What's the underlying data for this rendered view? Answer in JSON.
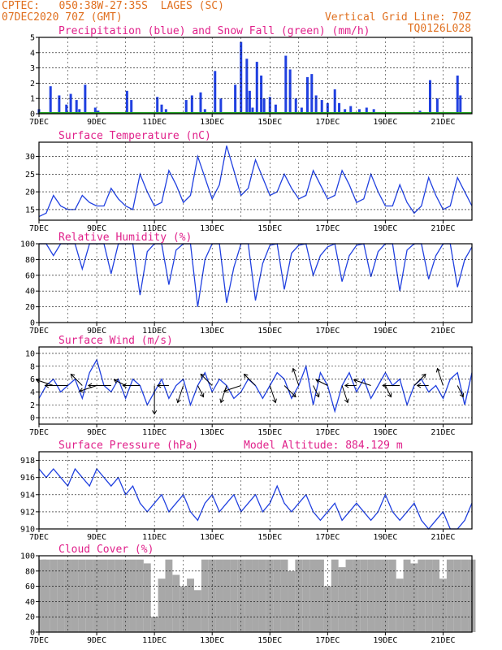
{
  "header": {
    "line1_left": "CPTEC:   050:38W-27:35S  LAGES (SC)",
    "line2_left": "07DEC2020 70Z (GMT)",
    "line1_right": "Vertical Grid Line: 70Z",
    "line2_right": "TQ0126L028"
  },
  "colors": {
    "title": "#e0208a",
    "header": "#e07020",
    "line": "#2040e0",
    "snow": "#20a020",
    "cloud": "#a8a8a8",
    "grid": "#000000"
  },
  "x_ticks": [
    "7DEC",
    "9DEC",
    "11DEC",
    "13DEC",
    "15DEC",
    "17DEC",
    "19DEC",
    "21DEC"
  ],
  "chart_data": [
    {
      "type": "bar",
      "title": "Precipitation (blue) and Snow Fall (green) (mm/h)",
      "ylim": [
        0,
        5
      ],
      "yticks": [
        "0",
        "1",
        "2",
        "3",
        "4",
        "5"
      ],
      "x_days": [
        0.0,
        0.4,
        0.7,
        0.95,
        1.1,
        1.3,
        1.4,
        1.6,
        1.95,
        2.05,
        3.05,
        3.2,
        4.1,
        4.25,
        4.4,
        5.1,
        5.3,
        5.6,
        5.75,
        6.1,
        6.3,
        6.8,
        7.0,
        7.2,
        7.3,
        7.4,
        7.55,
        7.7,
        7.8,
        8.0,
        8.2,
        8.55,
        8.7,
        8.9,
        9.1,
        9.3,
        9.45,
        9.6,
        9.8,
        10.0,
        10.25,
        10.4,
        10.6,
        10.8,
        11.1,
        11.35,
        11.6,
        13.2,
        13.55,
        13.8,
        14.5,
        14.6
      ],
      "precip": [
        0.3,
        1.8,
        1.2,
        0.6,
        1.3,
        0.9,
        0.3,
        1.9,
        0.4,
        0.2,
        1.5,
        0.9,
        1.1,
        0.6,
        0.3,
        0.9,
        1.2,
        1.4,
        0.3,
        2.8,
        1.0,
        1.9,
        4.7,
        3.6,
        1.5,
        0.4,
        3.4,
        2.5,
        1.0,
        1.1,
        0.6,
        3.8,
        2.9,
        1.0,
        0.4,
        2.4,
        2.6,
        1.2,
        0.9,
        0.7,
        1.6,
        0.7,
        0.3,
        0.5,
        0.3,
        0.4,
        0.3,
        0.2,
        2.2,
        1.0,
        2.5,
        1.2
      ],
      "snow": [
        0,
        0,
        0,
        0,
        0,
        0,
        0,
        0,
        0,
        0,
        0,
        0,
        0,
        0,
        0,
        0,
        0,
        0,
        0,
        0,
        0,
        0,
        0,
        0,
        0,
        0,
        0,
        0,
        0,
        0,
        0,
        0,
        0,
        0,
        0,
        0,
        0,
        0,
        0,
        0,
        0,
        0,
        0,
        0,
        0,
        0,
        0,
        0,
        0,
        0,
        0,
        0
      ]
    },
    {
      "type": "line",
      "title": "Surface Temperature (nC)",
      "ylim": [
        12,
        34
      ],
      "yticks": [
        "15",
        "20",
        "25",
        "30"
      ],
      "x_days": [
        0.0,
        0.25,
        0.5,
        0.75,
        1.0,
        1.25,
        1.5,
        1.75,
        2.0,
        2.25,
        2.5,
        2.75,
        3.0,
        3.25,
        3.5,
        3.75,
        4.0,
        4.25,
        4.5,
        4.75,
        5.0,
        5.25,
        5.5,
        5.75,
        6.0,
        6.25,
        6.5,
        6.75,
        7.0,
        7.25,
        7.5,
        7.75,
        8.0,
        8.25,
        8.5,
        8.75,
        9.0,
        9.25,
        9.5,
        9.75,
        10.0,
        10.25,
        10.5,
        10.75,
        11.0,
        11.25,
        11.5,
        11.75,
        12.0,
        12.25,
        12.5,
        12.75,
        13.0,
        13.25,
        13.5,
        13.75,
        14.0,
        14.25,
        14.5,
        14.75,
        15.0
      ],
      "y": [
        13,
        14,
        19,
        16,
        15,
        15,
        19,
        17,
        16,
        16,
        21,
        18,
        16,
        15,
        25,
        20,
        16,
        17,
        26,
        22,
        17,
        19,
        30,
        24,
        18,
        22,
        33,
        26,
        19,
        21,
        29,
        24,
        19,
        20,
        25,
        21,
        18,
        19,
        26,
        22,
        18,
        19,
        26,
        22,
        17,
        18,
        25,
        20,
        16,
        16,
        22,
        17,
        14,
        16,
        24,
        19,
        15,
        16,
        24,
        20,
        16
      ]
    },
    {
      "type": "line",
      "title": "Relative Humidity (%)",
      "ylim": [
        0,
        100
      ],
      "yticks": [
        "0",
        "20",
        "40",
        "60",
        "80",
        "100"
      ],
      "x_days": [
        0.0,
        0.25,
        0.5,
        0.75,
        1.0,
        1.25,
        1.5,
        1.75,
        2.0,
        2.25,
        2.5,
        2.75,
        3.0,
        3.25,
        3.5,
        3.75,
        4.0,
        4.25,
        4.5,
        4.75,
        5.0,
        5.25,
        5.5,
        5.75,
        6.0,
        6.25,
        6.5,
        6.75,
        7.0,
        7.25,
        7.5,
        7.75,
        8.0,
        8.25,
        8.5,
        8.75,
        9.0,
        9.25,
        9.5,
        9.75,
        10.0,
        10.25,
        10.5,
        10.75,
        11.0,
        11.25,
        11.5,
        11.75,
        12.0,
        12.25,
        12.5,
        12.75,
        13.0,
        13.25,
        13.5,
        13.75,
        14.0,
        14.25,
        14.5,
        14.75,
        15.0
      ],
      "y": [
        100,
        100,
        85,
        100,
        100,
        100,
        68,
        100,
        100,
        100,
        62,
        100,
        100,
        100,
        35,
        90,
        100,
        100,
        48,
        92,
        100,
        100,
        20,
        80,
        100,
        100,
        25,
        70,
        100,
        100,
        28,
        75,
        98,
        100,
        42,
        88,
        98,
        100,
        60,
        85,
        96,
        100,
        52,
        85,
        98,
        100,
        58,
        90,
        100,
        100,
        40,
        92,
        100,
        100,
        55,
        85,
        100,
        100,
        45,
        80,
        96
      ]
    },
    {
      "type": "line",
      "title": "Surface Wind (m/s)",
      "ylim": [
        -1,
        11
      ],
      "yticks": [
        "0",
        "2",
        "4",
        "6",
        "8",
        "10"
      ],
      "x_days": [
        0.0,
        0.25,
        0.5,
        0.75,
        1.0,
        1.25,
        1.5,
        1.75,
        2.0,
        2.25,
        2.5,
        2.75,
        3.0,
        3.25,
        3.5,
        3.75,
        4.0,
        4.25,
        4.5,
        4.75,
        5.0,
        5.25,
        5.5,
        5.75,
        6.0,
        6.25,
        6.5,
        6.75,
        7.0,
        7.25,
        7.5,
        7.75,
        8.0,
        8.25,
        8.5,
        8.75,
        9.0,
        9.25,
        9.5,
        9.75,
        10.0,
        10.25,
        10.5,
        10.75,
        11.0,
        11.25,
        11.5,
        11.75,
        12.0,
        12.25,
        12.5,
        12.75,
        13.0,
        13.25,
        13.5,
        13.75,
        14.0,
        14.25,
        14.5,
        14.75,
        15.0
      ],
      "y": [
        3,
        5,
        6,
        4,
        5,
        6,
        3,
        7,
        9,
        5,
        4,
        6,
        3,
        6,
        5,
        2,
        4,
        6,
        3,
        5,
        6,
        2,
        5,
        7,
        4,
        6,
        5,
        3,
        4,
        6,
        5,
        3,
        5,
        7,
        6,
        3,
        5,
        8,
        2,
        7,
        5,
        1,
        5,
        7,
        4,
        6,
        3,
        5,
        7,
        5,
        6,
        2,
        5,
        6,
        4,
        5,
        3,
        6,
        7,
        2,
        7
      ],
      "arrow_x_days": [
        0.5,
        1.0,
        1.5,
        2.0,
        2.5,
        3.0,
        3.5,
        4.0,
        4.5,
        5.0,
        5.5,
        6.0,
        6.5,
        7.0,
        7.5,
        8.0,
        8.5,
        9.0,
        9.5,
        10.0,
        10.5,
        11.0,
        11.5,
        12.0,
        12.5,
        13.0,
        13.5,
        14.0,
        14.5
      ],
      "arrow_u": [
        -3,
        -4,
        -2,
        -3,
        -4,
        -2,
        -3,
        0,
        -2,
        -1,
        1,
        -2,
        -1,
        -3,
        -2,
        1,
        2,
        -1,
        1,
        -2,
        1,
        -2,
        -3,
        1,
        -3,
        2,
        -2,
        -1,
        1
      ],
      "arrow_v": [
        1,
        0,
        2,
        -1,
        0,
        1,
        0,
        -5,
        0,
        -3,
        -2,
        2,
        -3,
        -1,
        2,
        -3,
        -2,
        3,
        -2,
        1,
        -3,
        0,
        1,
        -2,
        0,
        2,
        0,
        3,
        -2
      ]
    },
    {
      "type": "line",
      "title": "Surface Pressure (hPa)",
      "annotation": "Model Altitude: 884.129 m",
      "ylim": [
        910,
        919
      ],
      "yticks": [
        "910",
        "912",
        "914",
        "916",
        "918"
      ],
      "x_days": [
        0.0,
        0.25,
        0.5,
        0.75,
        1.0,
        1.25,
        1.5,
        1.75,
        2.0,
        2.25,
        2.5,
        2.75,
        3.0,
        3.25,
        3.5,
        3.75,
        4.0,
        4.25,
        4.5,
        4.75,
        5.0,
        5.25,
        5.5,
        5.75,
        6.0,
        6.25,
        6.5,
        6.75,
        7.0,
        7.25,
        7.5,
        7.75,
        8.0,
        8.25,
        8.5,
        8.75,
        9.0,
        9.25,
        9.5,
        9.75,
        10.0,
        10.25,
        10.5,
        10.75,
        11.0,
        11.25,
        11.5,
        11.75,
        12.0,
        12.25,
        12.5,
        12.75,
        13.0,
        13.25,
        13.5,
        13.75,
        14.0,
        14.25,
        14.5,
        14.75,
        15.0
      ],
      "y": [
        917,
        916,
        917,
        916,
        915,
        917,
        916,
        915,
        917,
        916,
        915,
        916,
        914,
        915,
        913,
        912,
        913,
        914,
        912,
        913,
        914,
        912,
        911,
        913,
        914,
        912,
        913,
        914,
        912,
        913,
        914,
        912,
        913,
        915,
        913,
        912,
        913,
        914,
        912,
        911,
        912,
        913,
        911,
        912,
        913,
        912,
        911,
        912,
        914,
        912,
        911,
        912,
        913,
        911,
        910,
        911,
        912,
        910,
        910,
        911,
        913
      ]
    },
    {
      "type": "bar",
      "title": "Cloud Cover (%)",
      "ylim": [
        0,
        100
      ],
      "yticks": [
        "0",
        "20",
        "40",
        "60",
        "80",
        "100"
      ],
      "x_days": [
        0.0,
        0.25,
        0.5,
        0.75,
        1.0,
        1.25,
        1.5,
        1.75,
        2.0,
        2.25,
        2.5,
        2.75,
        3.0,
        3.25,
        3.5,
        3.75,
        4.0,
        4.25,
        4.5,
        4.75,
        5.0,
        5.25,
        5.5,
        5.75,
        6.0,
        6.25,
        6.5,
        6.75,
        7.0,
        7.25,
        7.5,
        7.75,
        8.0,
        8.25,
        8.5,
        8.75,
        9.0,
        9.25,
        9.5,
        9.75,
        10.0,
        10.25,
        10.5,
        10.75,
        11.0,
        11.25,
        11.5,
        11.75,
        12.0,
        12.25,
        12.5,
        12.75,
        13.0,
        13.25,
        13.5,
        13.75,
        14.0,
        14.25,
        14.5,
        14.75,
        15.0
      ],
      "values": [
        95,
        95,
        95,
        95,
        95,
        95,
        95,
        95,
        95,
        95,
        95,
        95,
        95,
        95,
        95,
        90,
        20,
        70,
        95,
        75,
        60,
        70,
        55,
        95,
        95,
        95,
        95,
        95,
        95,
        95,
        95,
        95,
        95,
        95,
        95,
        80,
        95,
        95,
        95,
        95,
        60,
        95,
        85,
        95,
        95,
        95,
        95,
        95,
        95,
        95,
        70,
        95,
        90,
        95,
        95,
        95,
        70,
        95,
        95,
        95,
        95
      ]
    }
  ]
}
